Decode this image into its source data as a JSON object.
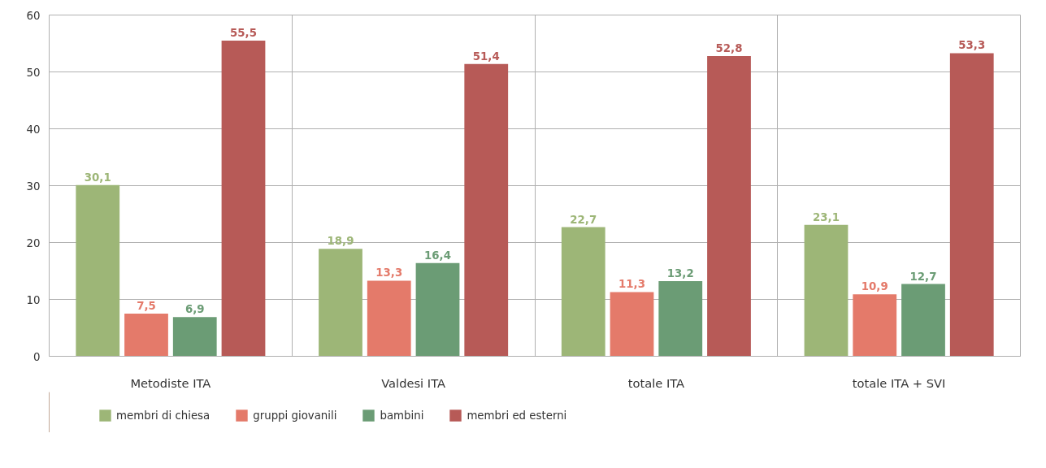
{
  "chart_data": {
    "type": "bar",
    "categories": [
      "Metodiste ITA",
      "Valdesi ITA",
      "totale ITA",
      "totale ITA + SVI"
    ],
    "series": [
      {
        "name": "membri di chiesa",
        "color": "#9db677",
        "values": [
          30.1,
          18.9,
          22.7,
          23.1
        ],
        "value_labels": [
          "30,1",
          "18,9",
          "22,7",
          "23,1"
        ]
      },
      {
        "name": "gruppi giovanili",
        "color": "#e47a6a",
        "values": [
          7.5,
          13.3,
          11.3,
          10.9
        ],
        "value_labels": [
          "7,5",
          "13,3",
          "11,3",
          "10,9"
        ]
      },
      {
        "name": "bambini",
        "color": "#6b9c75",
        "values": [
          6.9,
          16.4,
          13.2,
          12.7
        ],
        "value_labels": [
          "6,9",
          "16,4",
          "13,2",
          "12,7"
        ]
      },
      {
        "name": "membri ed esterni",
        "color": "#b75a57",
        "values": [
          55.5,
          51.4,
          52.8,
          53.3
        ],
        "value_labels": [
          "55,5",
          "51,4",
          "52,8",
          "53,3"
        ]
      }
    ],
    "ylim": [
      0,
      60
    ],
    "yticks": [
      0,
      10,
      20,
      30,
      40,
      50,
      60
    ],
    "grid": true,
    "legend": "bottom left"
  }
}
